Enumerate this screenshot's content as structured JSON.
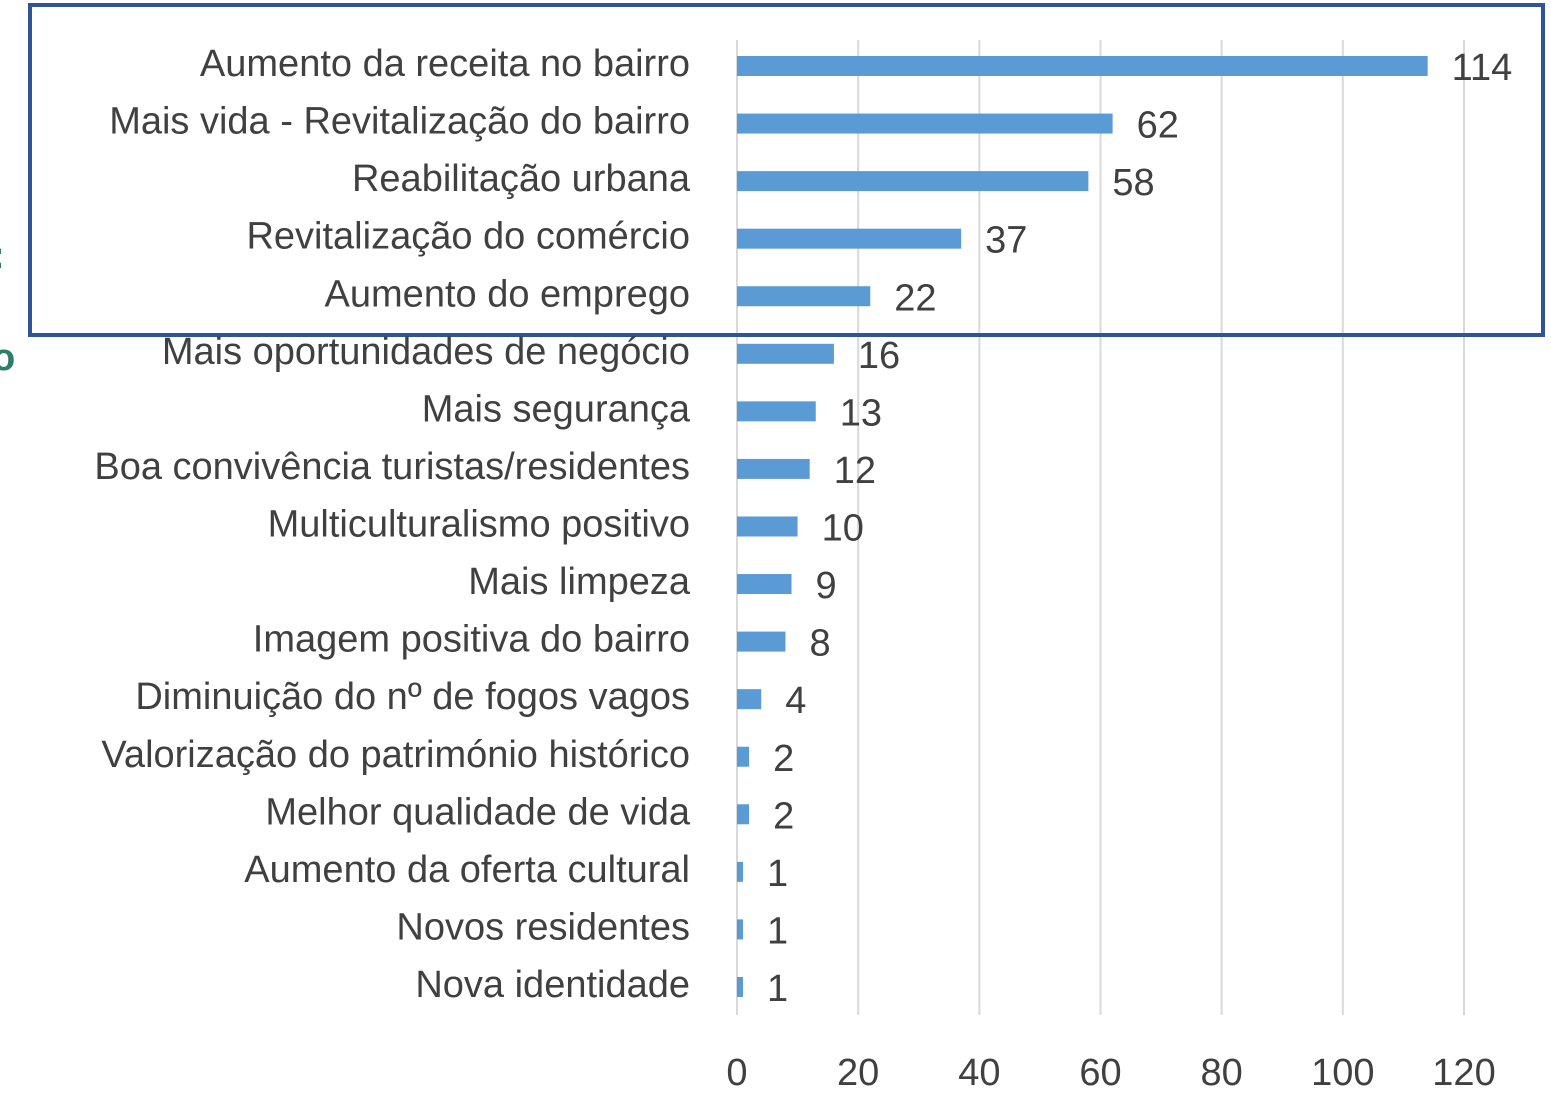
{
  "chart_data": {
    "type": "barh",
    "categories": [
      "Aumento da receita no bairro",
      "Mais vida - Revitalização do bairro",
      "Reabilitação urbana",
      "Revitalização do comércio",
      "Aumento do emprego",
      "Mais oportunidades de negócio",
      "Mais segurança",
      "Boa convivência turistas/residentes",
      "Multiculturalismo positivo",
      "Mais limpeza",
      "Imagem positiva do bairro",
      "Diminuição do nº de fogos vagos",
      "Valorização do património histórico",
      "Melhor qualidade de vida",
      "Aumento da oferta cultural",
      "Novos residentes",
      "Nova identidade"
    ],
    "values": [
      114,
      62,
      58,
      37,
      22,
      16,
      13,
      12,
      10,
      9,
      8,
      4,
      2,
      2,
      1,
      1,
      1
    ],
    "color": "#5b9bd5",
    "xlim": [
      0,
      120
    ],
    "xticks": [
      0,
      20,
      40,
      60,
      80,
      100,
      120
    ],
    "grid": true,
    "annotations": [
      ":",
      "o"
    ]
  }
}
